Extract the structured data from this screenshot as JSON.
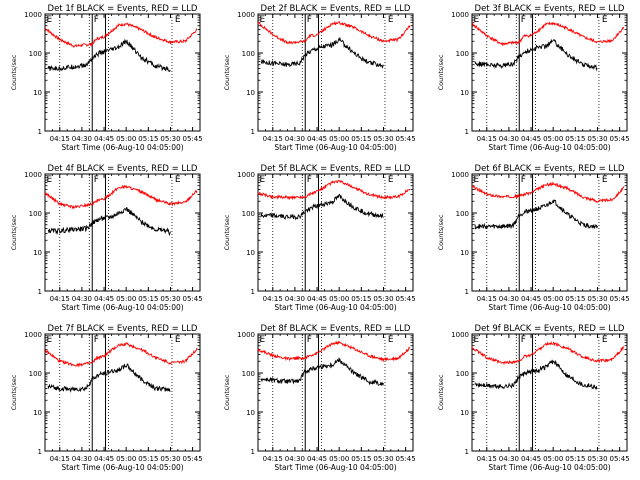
{
  "chart_data": [
    {
      "title": "Det 1f BLACK = Events, RED = LLD",
      "type": "line",
      "ylabel": "Counts/sec",
      "xlabel": "Start Time (06-Aug-10 04:05:00)",
      "yscale": "log",
      "ylim": [
        1,
        1000
      ],
      "xlim": [
        "04:05",
        "05:50"
      ],
      "xticks": [
        "04:15",
        "04:30",
        "04:45",
        "05:00",
        "05:15",
        "05:30",
        "05:45"
      ],
      "yticks": [
        "1",
        "10",
        "100",
        "1000"
      ],
      "region_markers": [
        {
          "label": "E",
          "at": "04:06"
        },
        {
          "label": "F",
          "at": "04:38"
        },
        {
          "label": "E",
          "at": "05:33"
        }
      ],
      "solid_verticals": [
        "04:37",
        "04:46"
      ],
      "dotted_verticals": [
        "04:15",
        "04:35",
        "04:48",
        "05:31"
      ],
      "series": [
        {
          "color": "#ff0000",
          "x": [
            "04:05",
            "04:15",
            "04:25",
            "04:37",
            "04:40",
            "04:45",
            "04:50",
            "04:55",
            "05:00",
            "05:10",
            "05:20",
            "05:30",
            "05:40",
            "05:48"
          ],
          "y": [
            430,
            220,
            150,
            170,
            230,
            260,
            370,
            520,
            560,
            400,
            250,
            190,
            200,
            400
          ]
        },
        {
          "color": "#000000",
          "x": [
            "04:07",
            "04:15",
            "04:25",
            "04:33",
            "04:37",
            "04:42",
            "04:50",
            "04:55",
            "05:00",
            "05:10",
            "05:20",
            "05:28",
            "05:30"
          ],
          "y": [
            40,
            40,
            45,
            48,
            75,
            100,
            120,
            140,
            200,
            80,
            45,
            40,
            35
          ]
        }
      ]
    },
    {
      "title": "Det 2f BLACK = Events, RED = LLD",
      "type": "line",
      "ylabel": "Counts/sec",
      "xlabel": "Start Time (06-Aug-10 04:05:00)",
      "yscale": "log",
      "ylim": [
        1,
        1000
      ],
      "xlim": [
        "04:05",
        "05:50"
      ],
      "xticks": [
        "04:15",
        "04:30",
        "04:45",
        "05:00",
        "05:15",
        "05:30",
        "05:45"
      ],
      "yticks": [
        "1",
        "10",
        "100",
        "1000"
      ],
      "region_markers": [
        {
          "label": "E",
          "at": "04:06"
        },
        {
          "label": "F",
          "at": "04:38"
        },
        {
          "label": "E",
          "at": "05:33"
        }
      ],
      "solid_verticals": [
        "04:37",
        "04:46"
      ],
      "dotted_verticals": [
        "04:15",
        "04:35",
        "04:48",
        "05:31"
      ],
      "series": [
        {
          "color": "#ff0000",
          "x": [
            "04:05",
            "04:15",
            "04:25",
            "04:37",
            "04:40",
            "04:45",
            "04:50",
            "04:55",
            "05:00",
            "05:10",
            "05:20",
            "05:30",
            "05:40",
            "05:48"
          ],
          "y": [
            600,
            300,
            180,
            200,
            280,
            290,
            400,
            560,
            600,
            450,
            280,
            200,
            220,
            500
          ]
        },
        {
          "color": "#000000",
          "x": [
            "04:07",
            "04:15",
            "04:25",
            "04:33",
            "04:37",
            "04:42",
            "04:50",
            "04:55",
            "05:00",
            "05:10",
            "05:20",
            "05:28",
            "05:30"
          ],
          "y": [
            60,
            55,
            50,
            55,
            90,
            120,
            150,
            160,
            220,
            100,
            55,
            50,
            45
          ]
        }
      ]
    },
    {
      "title": "Det 3f BLACK = Events, RED = LLD",
      "type": "line",
      "ylabel": "Counts/sec",
      "xlabel": "Start Time (06-Aug-10 04:05:00)",
      "yscale": "log",
      "ylim": [
        1,
        1000
      ],
      "xlim": [
        "04:05",
        "05:50"
      ],
      "xticks": [
        "04:15",
        "04:30",
        "04:45",
        "05:00",
        "05:15",
        "05:30",
        "05:45"
      ],
      "yticks": [
        "1",
        "10",
        "100",
        "1000"
      ],
      "region_markers": [
        {
          "label": "E",
          "at": "04:06"
        },
        {
          "label": "F",
          "at": "04:38"
        },
        {
          "label": "E",
          "at": "05:33"
        }
      ],
      "solid_verticals": [
        "04:37",
        "04:46"
      ],
      "dotted_verticals": [
        "04:15",
        "04:35",
        "04:48",
        "05:31"
      ],
      "series": [
        {
          "color": "#ff0000",
          "x": [
            "04:05",
            "04:15",
            "04:25",
            "04:37",
            "04:40",
            "04:45",
            "04:50",
            "04:55",
            "05:00",
            "05:10",
            "05:20",
            "05:30",
            "05:40",
            "05:48"
          ],
          "y": [
            560,
            280,
            170,
            190,
            270,
            280,
            380,
            540,
            580,
            420,
            260,
            190,
            210,
            460
          ]
        },
        {
          "color": "#000000",
          "x": [
            "04:07",
            "04:15",
            "04:25",
            "04:33",
            "04:37",
            "04:42",
            "04:50",
            "04:55",
            "05:00",
            "05:10",
            "05:20",
            "05:28",
            "05:30"
          ],
          "y": [
            55,
            50,
            48,
            52,
            85,
            110,
            140,
            150,
            210,
            90,
            50,
            45,
            40
          ]
        }
      ]
    },
    {
      "title": "Det 4f BLACK = Events, RED = LLD",
      "type": "line",
      "ylabel": "Counts/sec",
      "xlabel": "Start Time (06-Aug-10 04:05:00)",
      "yscale": "log",
      "ylim": [
        1,
        1000
      ],
      "xlim": [
        "04:05",
        "05:50"
      ],
      "xticks": [
        "04:15",
        "04:30",
        "04:45",
        "05:00",
        "05:15",
        "05:30",
        "05:45"
      ],
      "yticks": [
        "1",
        "10",
        "100",
        "1000"
      ],
      "region_markers": [
        {
          "label": "E",
          "at": "04:06"
        },
        {
          "label": "F",
          "at": "04:38"
        },
        {
          "label": "E",
          "at": "05:33"
        }
      ],
      "solid_verticals": [
        "04:37",
        "04:46"
      ],
      "dotted_verticals": [
        "04:15",
        "04:35",
        "04:48",
        "05:31"
      ],
      "series": [
        {
          "color": "#ff0000",
          "x": [
            "04:05",
            "04:15",
            "04:25",
            "04:37",
            "04:40",
            "04:45",
            "04:50",
            "04:55",
            "05:00",
            "05:10",
            "05:20",
            "05:30",
            "05:40",
            "05:48"
          ],
          "y": [
            330,
            170,
            140,
            170,
            200,
            230,
            320,
            450,
            480,
            350,
            220,
            170,
            190,
            380
          ]
        },
        {
          "color": "#000000",
          "x": [
            "04:07",
            "04:15",
            "04:25",
            "04:33",
            "04:37",
            "04:42",
            "04:50",
            "04:55",
            "05:00",
            "05:10",
            "05:20",
            "05:28",
            "05:30"
          ],
          "y": [
            35,
            35,
            38,
            40,
            55,
            70,
            80,
            100,
            130,
            60,
            38,
            35,
            30
          ]
        }
      ]
    },
    {
      "title": "Det 5f BLACK = Events, RED = LLD",
      "type": "line",
      "ylabel": "Counts/sec",
      "xlabel": "Start Time (06-Aug-10 04:05:00)",
      "yscale": "log",
      "ylim": [
        1,
        1000
      ],
      "xlim": [
        "04:05",
        "05:50"
      ],
      "xticks": [
        "04:15",
        "04:30",
        "04:45",
        "05:00",
        "05:15",
        "05:30",
        "05:45"
      ],
      "yticks": [
        "1",
        "10",
        "100",
        "1000"
      ],
      "region_markers": [
        {
          "label": "E",
          "at": "04:06"
        },
        {
          "label": "F",
          "at": "04:38"
        },
        {
          "label": "E",
          "at": "05:33"
        }
      ],
      "solid_verticals": [
        "04:37",
        "04:46"
      ],
      "dotted_verticals": [
        "04:15",
        "04:35",
        "04:48",
        "05:31"
      ],
      "series": [
        {
          "color": "#ff0000",
          "x": [
            "04:05",
            "04:15",
            "04:25",
            "04:37",
            "04:40",
            "04:45",
            "04:50",
            "04:55",
            "05:00",
            "05:10",
            "05:20",
            "05:30",
            "05:40",
            "05:48"
          ],
          "y": [
            320,
            260,
            250,
            260,
            300,
            360,
            450,
            600,
            650,
            450,
            300,
            250,
            260,
            420
          ]
        },
        {
          "color": "#000000",
          "x": [
            "04:07",
            "04:15",
            "04:25",
            "04:33",
            "04:37",
            "04:42",
            "04:50",
            "04:55",
            "05:00",
            "05:10",
            "05:20",
            "05:28",
            "05:30"
          ],
          "y": [
            85,
            85,
            80,
            80,
            110,
            140,
            170,
            190,
            270,
            140,
            95,
            85,
            80
          ]
        }
      ]
    },
    {
      "title": "Det 6f BLACK = Events, RED = LLD",
      "type": "line",
      "ylabel": "Counts/sec",
      "xlabel": "Start Time (06-Aug-10 04:05:00)",
      "yscale": "log",
      "ylim": [
        1,
        1000
      ],
      "xlim": [
        "04:05",
        "05:50"
      ],
      "xticks": [
        "04:15",
        "04:30",
        "04:45",
        "05:00",
        "05:15",
        "05:30",
        "05:45"
      ],
      "yticks": [
        "1",
        "10",
        "100",
        "1000"
      ],
      "region_markers": [
        {
          "label": "E",
          "at": "04:06"
        },
        {
          "label": "F",
          "at": "04:38"
        },
        {
          "label": "E",
          "at": "05:33"
        }
      ],
      "solid_verticals": [
        "04:37",
        "04:46"
      ],
      "dotted_verticals": [
        "04:15",
        "04:35",
        "04:48",
        "05:31"
      ],
      "series": [
        {
          "color": "#ff0000",
          "x": [
            "04:05",
            "04:15",
            "04:25",
            "04:37",
            "04:40",
            "04:45",
            "04:50",
            "04:55",
            "05:00",
            "05:10",
            "05:20",
            "05:30",
            "05:40",
            "05:48"
          ],
          "y": [
            480,
            300,
            260,
            270,
            300,
            330,
            420,
            520,
            560,
            420,
            260,
            200,
            220,
            450
          ]
        },
        {
          "color": "#000000",
          "x": [
            "04:07",
            "04:15",
            "04:25",
            "04:33",
            "04:37",
            "04:42",
            "04:50",
            "04:55",
            "05:00",
            "05:10",
            "05:20",
            "05:28",
            "05:30"
          ],
          "y": [
            45,
            45,
            45,
            48,
            90,
            110,
            130,
            150,
            210,
            90,
            50,
            45,
            42
          ]
        }
      ]
    },
    {
      "title": "Det 7f BLACK = Events, RED = LLD",
      "type": "line",
      "ylabel": "Counts/sec",
      "xlabel": "Start Time (06-Aug-10 04:05:00)",
      "yscale": "log",
      "ylim": [
        1,
        1000
      ],
      "xlim": [
        "04:05",
        "05:50"
      ],
      "xticks": [
        "04:15",
        "04:30",
        "04:45",
        "05:00",
        "05:15",
        "05:30",
        "05:45"
      ],
      "yticks": [
        "1",
        "10",
        "100",
        "1000"
      ],
      "region_markers": [
        {
          "label": "E",
          "at": "04:06"
        },
        {
          "label": "F",
          "at": "04:38"
        },
        {
          "label": "E",
          "at": "05:33"
        }
      ],
      "solid_verticals": [
        "04:37",
        "04:46"
      ],
      "dotted_verticals": [
        "04:15",
        "04:35",
        "04:48",
        "05:31"
      ],
      "series": [
        {
          "color": "#ff0000",
          "x": [
            "04:05",
            "04:15",
            "04:25",
            "04:37",
            "04:40",
            "04:45",
            "04:50",
            "04:55",
            "05:00",
            "05:10",
            "05:20",
            "05:30",
            "05:40",
            "05:48"
          ],
          "y": [
            380,
            200,
            160,
            180,
            240,
            270,
            380,
            520,
            560,
            400,
            250,
            180,
            200,
            420
          ]
        },
        {
          "color": "#000000",
          "x": [
            "04:07",
            "04:15",
            "04:25",
            "04:33",
            "04:37",
            "04:42",
            "04:50",
            "04:55",
            "05:00",
            "05:10",
            "05:20",
            "05:28",
            "05:30"
          ],
          "y": [
            45,
            40,
            38,
            40,
            70,
            90,
            110,
            120,
            160,
            70,
            40,
            38,
            35
          ]
        }
      ]
    },
    {
      "title": "Det 8f BLACK = Events, RED = LLD",
      "type": "line",
      "ylabel": "Counts/sec",
      "xlabel": "Start Time (06-Aug-10 04:05:00)",
      "yscale": "log",
      "ylim": [
        1,
        1000
      ],
      "xlim": [
        "04:05",
        "05:50"
      ],
      "xticks": [
        "04:15",
        "04:30",
        "04:45",
        "05:00",
        "05:15",
        "05:30",
        "05:45"
      ],
      "yticks": [
        "1",
        "10",
        "100",
        "1000"
      ],
      "region_markers": [
        {
          "label": "E",
          "at": "04:06"
        },
        {
          "label": "F",
          "at": "04:38"
        },
        {
          "label": "E",
          "at": "05:33"
        }
      ],
      "solid_verticals": [
        "04:37",
        "04:46"
      ],
      "dotted_verticals": [
        "04:15",
        "04:35",
        "04:48",
        "05:31"
      ],
      "series": [
        {
          "color": "#ff0000",
          "x": [
            "04:05",
            "04:15",
            "04:25",
            "04:37",
            "04:40",
            "04:45",
            "04:50",
            "04:55",
            "05:00",
            "05:10",
            "05:20",
            "05:30",
            "05:40",
            "05:48"
          ],
          "y": [
            400,
            280,
            230,
            240,
            280,
            320,
            420,
            560,
            600,
            420,
            280,
            220,
            240,
            450
          ]
        },
        {
          "color": "#000000",
          "x": [
            "04:07",
            "04:15",
            "04:25",
            "04:33",
            "04:37",
            "04:42",
            "04:50",
            "04:55",
            "05:00",
            "05:10",
            "05:20",
            "05:28",
            "05:30"
          ],
          "y": [
            70,
            65,
            60,
            62,
            110,
            130,
            150,
            160,
            220,
            100,
            60,
            55,
            50
          ]
        }
      ]
    },
    {
      "title": "Det 9f BLACK = Events, RED = LLD",
      "type": "line",
      "ylabel": "Counts/sec",
      "xlabel": "Start Time (06-Aug-10 04:05:00)",
      "yscale": "log",
      "ylim": [
        1,
        1000
      ],
      "xlim": [
        "04:05",
        "05:50"
      ],
      "xticks": [
        "04:15",
        "04:30",
        "04:45",
        "05:00",
        "05:15",
        "05:30",
        "05:45"
      ],
      "yticks": [
        "1",
        "10",
        "100",
        "1000"
      ],
      "region_markers": [
        {
          "label": "E",
          "at": "04:06"
        },
        {
          "label": "F",
          "at": "04:38"
        },
        {
          "label": "E",
          "at": "05:33"
        }
      ],
      "solid_verticals": [
        "04:37",
        "04:46"
      ],
      "dotted_verticals": [
        "04:15",
        "04:35",
        "04:48",
        "05:31"
      ],
      "series": [
        {
          "color": "#ff0000",
          "x": [
            "04:05",
            "04:15",
            "04:25",
            "04:37",
            "04:40",
            "04:45",
            "04:50",
            "04:55",
            "05:00",
            "05:10",
            "05:20",
            "05:30",
            "05:40",
            "05:48"
          ],
          "y": [
            450,
            250,
            180,
            200,
            260,
            290,
            400,
            540,
            580,
            420,
            260,
            200,
            220,
            460
          ]
        },
        {
          "color": "#000000",
          "x": [
            "04:07",
            "04:15",
            "04:25",
            "04:33",
            "04:37",
            "04:42",
            "04:50",
            "04:55",
            "05:00",
            "05:10",
            "05:20",
            "05:28",
            "05:30"
          ],
          "y": [
            50,
            48,
            45,
            48,
            80,
            100,
            120,
            140,
            200,
            85,
            50,
            45,
            42
          ]
        }
      ]
    }
  ]
}
